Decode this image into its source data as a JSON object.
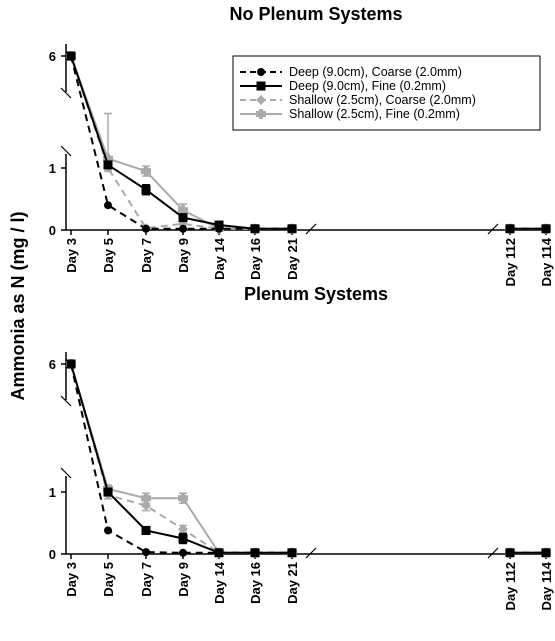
{
  "ylabel": "Ammonia as N (mg / l)",
  "chart_data": [
    {
      "type": "line",
      "title": "No Plenum Systems",
      "ylabel": "Ammonia as N (mg / l)",
      "categories": [
        "Day 3",
        "Day 5",
        "Day 7",
        "Day 9",
        "Day 14",
        "Day 16",
        "Day 21",
        "Day 112",
        "Day 114"
      ],
      "y_ticks": [
        "0",
        "1",
        "6"
      ],
      "y_axis_break": true,
      "x_axis_break": "between Day 21 and Day 112",
      "legend_position": "top-right",
      "series": [
        {
          "name": "Deep (9.0cm), Coarse (2.0mm)",
          "color": "#000000",
          "line": "dashed",
          "marker": "circle",
          "values": [
            6.0,
            0.4,
            0.02,
            0.02,
            0.02,
            0.02,
            0.02,
            0.02,
            0.02
          ],
          "errors": [
            0.08,
            0.03,
            0.02,
            0.02,
            0.02,
            0.02,
            0.02,
            0.02,
            0.02
          ]
        },
        {
          "name": "Deep (9.0cm), Fine (0.2mm)",
          "color": "#000000",
          "line": "solid",
          "marker": "square",
          "values": [
            6.0,
            1.05,
            0.65,
            0.2,
            0.08,
            0.02,
            0.02,
            0.02,
            0.02
          ],
          "errors": [
            0.08,
            0.05,
            0.08,
            0.05,
            0.05,
            0.02,
            0.02,
            0.02,
            0.02
          ]
        },
        {
          "name": "Shallow (2.5cm), Coarse (2.0mm)",
          "color": "#aaaaaa",
          "line": "dashed",
          "marker": "diamond",
          "values": [
            6.0,
            1.0,
            0.03,
            0.1,
            0.02,
            0.02,
            0.02,
            0.02,
            0.02
          ],
          "errors": [
            0.08,
            0.05,
            0.03,
            0.08,
            0.02,
            0.02,
            0.02,
            0.02,
            0.02
          ]
        },
        {
          "name": "Shallow (2.5cm), Fine (0.2mm)",
          "color": "#aaaaaa",
          "line": "solid",
          "marker": "star",
          "values": [
            6.0,
            1.15,
            0.95,
            0.32,
            0.02,
            0.02,
            0.02,
            0.02,
            0.02
          ],
          "errors": [
            0.08,
            0.06,
            0.08,
            0.1,
            0.02,
            0.02,
            0.02,
            0.02,
            0.02
          ]
        }
      ]
    },
    {
      "type": "line",
      "title": "Plenum Systems",
      "ylabel": "Ammonia as N (mg / l)",
      "categories": [
        "Day 3",
        "Day 5",
        "Day 7",
        "Day 9",
        "Day 14",
        "Day 16",
        "Day 21",
        "Day 112",
        "Day 114"
      ],
      "y_ticks": [
        "0",
        "1",
        "6"
      ],
      "y_axis_break": true,
      "x_axis_break": "between Day 21 and Day 112",
      "series": [
        {
          "name": "Deep (9.0cm), Coarse (2.0mm)",
          "color": "#000000",
          "line": "dashed",
          "marker": "circle",
          "values": [
            6.0,
            0.38,
            0.03,
            0.02,
            0.02,
            0.02,
            0.02,
            0.02,
            0.02
          ],
          "errors": [
            0.08,
            0.03,
            0.03,
            0.02,
            0.02,
            0.02,
            0.02,
            0.02,
            0.02
          ]
        },
        {
          "name": "Deep (9.0cm), Fine (0.2mm)",
          "color": "#000000",
          "line": "solid",
          "marker": "square",
          "values": [
            6.0,
            1.0,
            0.38,
            0.25,
            0.02,
            0.02,
            0.02,
            0.02,
            0.02
          ],
          "errors": [
            0.08,
            0.06,
            0.06,
            0.08,
            0.02,
            0.02,
            0.02,
            0.02,
            0.02
          ]
        },
        {
          "name": "Shallow (2.5cm), Coarse (2.0mm)",
          "color": "#aaaaaa",
          "line": "dashed",
          "marker": "diamond",
          "values": [
            6.0,
            0.95,
            0.78,
            0.4,
            0.02,
            0.02,
            0.02,
            0.02,
            0.02
          ],
          "errors": [
            0.08,
            0.06,
            0.08,
            0.06,
            0.02,
            0.02,
            0.02,
            0.02,
            0.02
          ]
        },
        {
          "name": "Shallow (2.5cm), Fine (0.2mm)",
          "color": "#aaaaaa",
          "line": "solid",
          "marker": "star",
          "values": [
            6.0,
            1.05,
            0.9,
            0.9,
            0.02,
            0.02,
            0.02,
            0.02,
            0.02
          ],
          "errors": [
            0.08,
            0.06,
            0.08,
            0.08,
            0.02,
            0.02,
            0.02,
            0.02,
            0.02
          ]
        }
      ]
    }
  ]
}
